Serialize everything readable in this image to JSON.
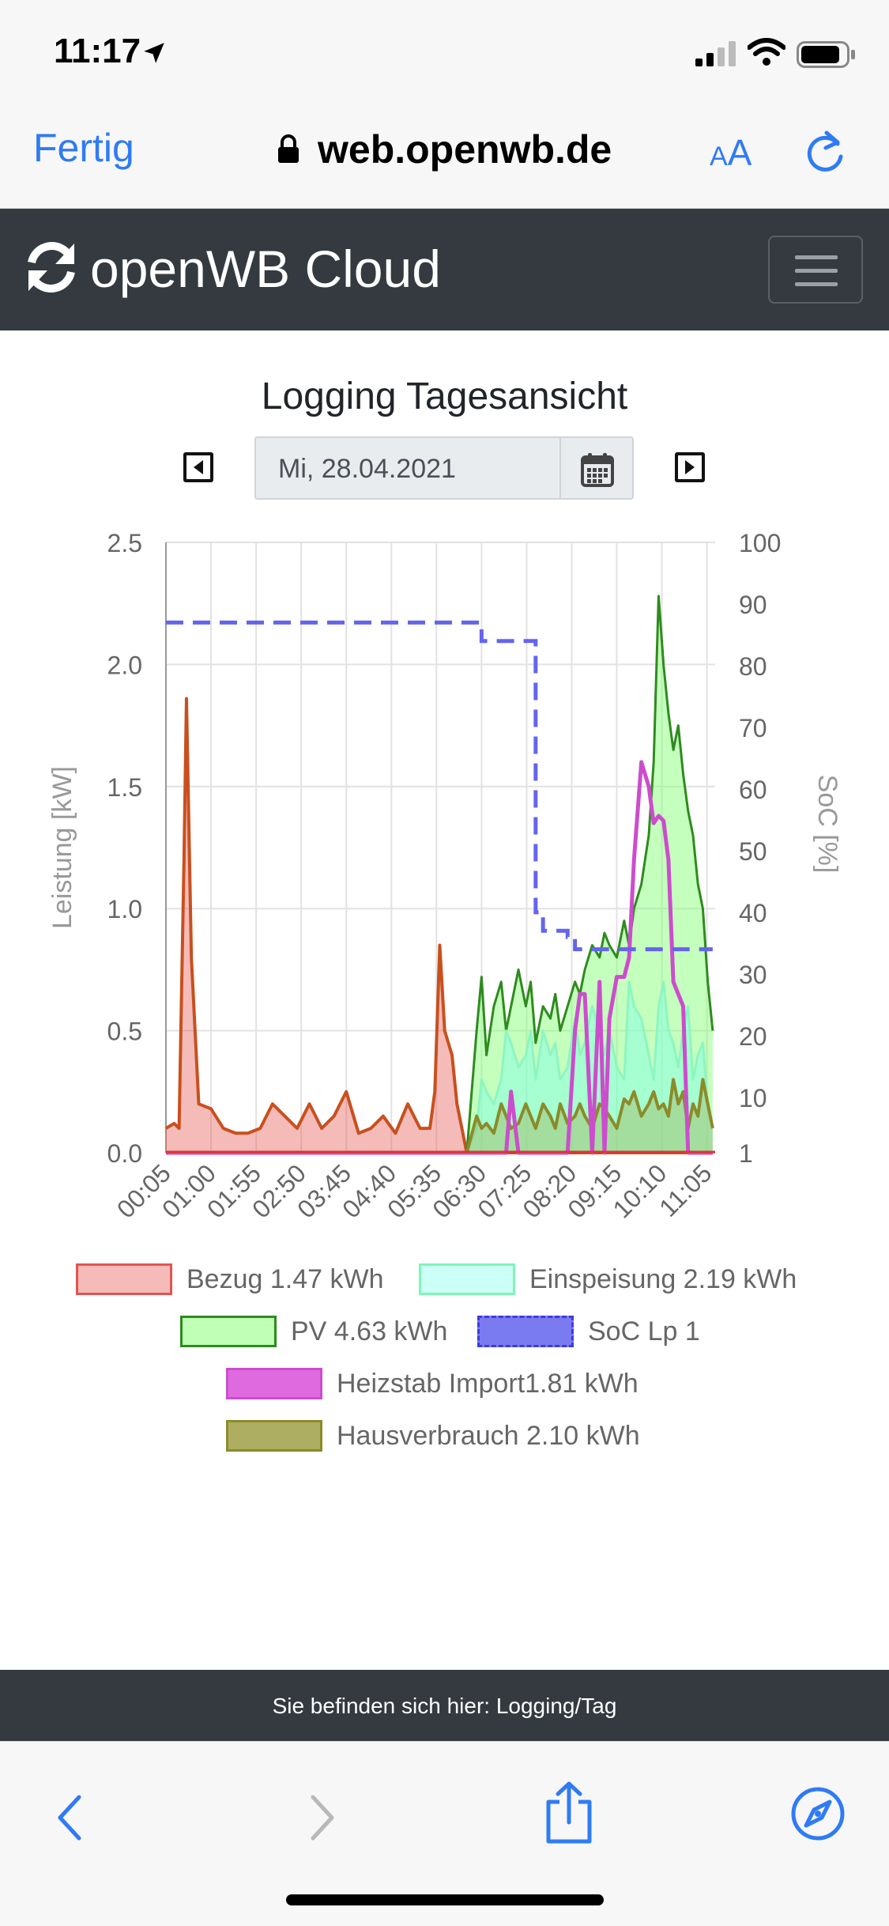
{
  "status_bar": {
    "time": "11:17"
  },
  "browser": {
    "done_label": "Fertig",
    "url": "web.openwb.de",
    "aa_small": "A",
    "aa_big": "A"
  },
  "navbar": {
    "brand": "openWB Cloud"
  },
  "page": {
    "title": "Logging Tagesansicht",
    "date": "Mi, 28.04.2021"
  },
  "footer": {
    "breadcrumb": "Sie befinden sich hier: Logging/Tag"
  },
  "colors": {
    "navbar_bg": "#343a40",
    "link_blue": "#2f7bf5",
    "bezug": "#e35450",
    "einspeisung": "#7ff5d2",
    "pv": "#2e8b1e",
    "soc": "#6464ee",
    "heizstab": "#cc4dcc",
    "hausverbrauch": "#8b8b2a"
  },
  "chart_data": {
    "type": "area",
    "xlabel": "",
    "ylabel": "Leistung [kW]",
    "y2label": "SoC [%]",
    "ylim": [
      0,
      2.5
    ],
    "y2lim": [
      1,
      100
    ],
    "yticks": [
      "0.0",
      "0.5",
      "1.0",
      "1.5",
      "2.0",
      "2.5"
    ],
    "y2ticks": [
      "1",
      "10",
      "20",
      "30",
      "40",
      "50",
      "60",
      "70",
      "80",
      "90",
      "100"
    ],
    "xticks": [
      "00:05",
      "01:00",
      "01:55",
      "02:50",
      "03:45",
      "04:40",
      "05:35",
      "06:30",
      "07:25",
      "08:20",
      "09:15",
      "10:10",
      "11:05"
    ],
    "grid": true,
    "legend_position": "bottom",
    "x_hours": [
      0.083,
      0.25,
      0.35,
      0.45,
      0.5,
      0.6,
      0.75,
      1.0,
      1.25,
      1.5,
      1.75,
      2.0,
      2.25,
      2.5,
      2.75,
      3.0,
      3.25,
      3.5,
      3.75,
      4.0,
      4.25,
      4.5,
      4.75,
      5.0,
      5.25,
      5.45,
      5.55,
      5.65,
      5.75,
      5.9,
      6.0,
      6.2,
      6.4,
      6.5,
      6.6,
      6.75,
      6.9,
      7.0,
      7.1,
      7.25,
      7.4,
      7.5,
      7.6,
      7.75,
      7.9,
      8.0,
      8.1,
      8.25,
      8.4,
      8.5,
      8.6,
      8.75,
      8.9,
      9.0,
      9.1,
      9.25,
      9.4,
      9.5,
      9.6,
      9.75,
      9.9,
      10.0,
      10.1,
      10.2,
      10.3,
      10.4,
      10.5,
      10.6,
      10.7,
      10.8,
      10.9,
      11.0,
      11.1,
      11.2
    ],
    "series": [
      {
        "name": "Bezug 1.47 kWh",
        "values": [
          0.1,
          0.12,
          0.1,
          1.2,
          1.86,
          0.8,
          0.2,
          0.18,
          0.1,
          0.08,
          0.08,
          0.1,
          0.2,
          0.15,
          0.1,
          0.2,
          0.1,
          0.15,
          0.25,
          0.08,
          0.1,
          0.15,
          0.08,
          0.2,
          0.1,
          0.1,
          0.25,
          0.85,
          0.5,
          0.4,
          0.2,
          0.0,
          0.0,
          0.0,
          0.0,
          0.0,
          0.0,
          0.0,
          0.0,
          0.0,
          0.0,
          0.0,
          0.0,
          0.0,
          0.0,
          0.0,
          0.0,
          0.0,
          0.0,
          0.0,
          0.0,
          0.0,
          0.0,
          0.0,
          0.0,
          0.0,
          0.0,
          0.0,
          0.0,
          0.0,
          0.0,
          0.0,
          0.0,
          0.0,
          0.0,
          0.0,
          0.0,
          0.0,
          0.0,
          0.0,
          0.0,
          0.0,
          0.0,
          0.0
        ]
      },
      {
        "name": "Einspeisung 2.19 kWh",
        "values": [
          0,
          0,
          0,
          0,
          0,
          0,
          0,
          0,
          0,
          0,
          0,
          0,
          0,
          0,
          0,
          0,
          0,
          0,
          0,
          0,
          0,
          0,
          0,
          0,
          0,
          0,
          0,
          0,
          0,
          0,
          0,
          0,
          0.1,
          0.3,
          0.25,
          0.2,
          0.3,
          0.5,
          0.45,
          0.35,
          0.4,
          0.5,
          0.3,
          0.5,
          0.4,
          0.45,
          0.3,
          0.35,
          0.55,
          0.4,
          0.45,
          0.6,
          0.5,
          0.4,
          0.5,
          0.35,
          0.3,
          0.7,
          0.6,
          0.55,
          0.4,
          0.3,
          0.6,
          0.7,
          0.5,
          0.45,
          0.35,
          0.5,
          0.6,
          0.3,
          0.4,
          0.45,
          0.2,
          0.1
        ]
      },
      {
        "name": "PV 4.63 kWh",
        "values": [
          0,
          0,
          0,
          0,
          0,
          0,
          0,
          0,
          0,
          0,
          0,
          0,
          0,
          0,
          0,
          0,
          0,
          0,
          0,
          0,
          0,
          0,
          0,
          0,
          0,
          0,
          0,
          0,
          0,
          0,
          0,
          0,
          0.5,
          0.72,
          0.4,
          0.6,
          0.7,
          0.5,
          0.6,
          0.75,
          0.6,
          0.7,
          0.45,
          0.6,
          0.55,
          0.65,
          0.5,
          0.6,
          0.7,
          0.65,
          0.75,
          0.85,
          0.8,
          0.9,
          0.85,
          0.8,
          0.95,
          0.85,
          1.0,
          1.1,
          1.3,
          1.6,
          2.28,
          2.0,
          1.8,
          1.65,
          1.75,
          1.55,
          1.4,
          1.3,
          1.1,
          1.0,
          0.7,
          0.5
        ]
      },
      {
        "name": "SoC Lp 1",
        "values": [
          87,
          87,
          87,
          87,
          87,
          87,
          87,
          87,
          87,
          87,
          87,
          87,
          87,
          87,
          87,
          87,
          87,
          87,
          87,
          87,
          87,
          87,
          87,
          87,
          87,
          87,
          87,
          87,
          87,
          87,
          87,
          87,
          87,
          84,
          84,
          84,
          84,
          84,
          84,
          84,
          84,
          84,
          40,
          37,
          37,
          37,
          37,
          36,
          34,
          34,
          34,
          34,
          34,
          34,
          34,
          34,
          34,
          34,
          34,
          34,
          34,
          34,
          34,
          34,
          34,
          34,
          34,
          34,
          34,
          34,
          34,
          34,
          34,
          34
        ]
      },
      {
        "name": "Heizstab Import1.81 kWh",
        "values": [
          0,
          0,
          0,
          0,
          0,
          0,
          0,
          0,
          0,
          0,
          0,
          0,
          0,
          0,
          0,
          0,
          0,
          0,
          0,
          0,
          0,
          0,
          0,
          0,
          0,
          0,
          0,
          0,
          0,
          0,
          0,
          0,
          0,
          0,
          0,
          0,
          0,
          0,
          0.25,
          0,
          0,
          0,
          0,
          0,
          0,
          0,
          0,
          0,
          0.5,
          0.65,
          0.65,
          0,
          0.7,
          0,
          0.55,
          0.72,
          0.72,
          0.8,
          1.2,
          1.6,
          1.5,
          1.35,
          1.38,
          1.36,
          1.2,
          0.7,
          0.65,
          0.6,
          0,
          0,
          0,
          0,
          0,
          0
        ]
      },
      {
        "name": "Hausverbrauch 2.10 kWh",
        "values": [
          0,
          0,
          0,
          0,
          0,
          0,
          0,
          0,
          0,
          0,
          0,
          0,
          0,
          0,
          0,
          0,
          0,
          0,
          0,
          0,
          0,
          0,
          0,
          0,
          0,
          0,
          0,
          0,
          0,
          0,
          0,
          0,
          0.15,
          0.1,
          0.12,
          0.08,
          0.2,
          0.15,
          0.1,
          0.12,
          0.2,
          0.15,
          0.1,
          0.2,
          0.15,
          0.1,
          0.2,
          0.12,
          0.15,
          0.2,
          0.15,
          0.1,
          0.2,
          0.18,
          0.15,
          0.1,
          0.22,
          0.2,
          0.25,
          0.15,
          0.2,
          0.25,
          0.18,
          0.2,
          0.15,
          0.3,
          0.2,
          0.25,
          0.1,
          0.2,
          0.15,
          0.3,
          0.2,
          0.1
        ]
      }
    ]
  }
}
